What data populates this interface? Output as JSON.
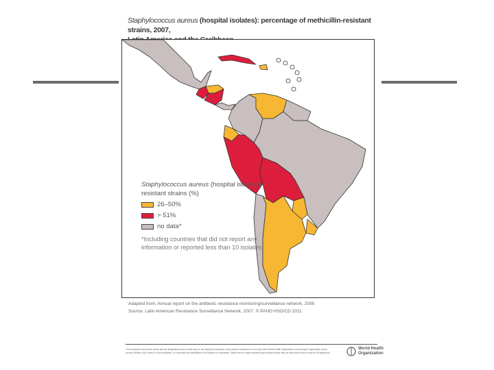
{
  "title": {
    "italic": "Staphylococcus aureus",
    "rest": " (hospital isolates): percentage of methicillin-resistant strains, 2007,",
    "line2": "Latin America and the Caribbean"
  },
  "legend": {
    "title_italic": "Staphylococcus aureus",
    "title_rest": " (hospital isolates)",
    "title_line2": "resistant strains (%)",
    "items": [
      {
        "label": "26–50%",
        "color": "#f7b733"
      },
      {
        "label": "> 51%",
        "color": "#dc1e3c"
      },
      {
        "label": "no data*",
        "color": "#c9bfbf"
      }
    ],
    "note": "*Including countries that did not report any information or reported less than 10 isolates"
  },
  "source": {
    "adapted": "Adapted from: Annual report on the antibiotic resistance monitoring/surveillance network, 2008",
    "source": "Source: Latin American Resistance Surveillance Network, 2007. © PAHO HSD/CD 2011"
  },
  "footer": {
    "disclaimer": "The boundaries and names shown and the designations used on this map do not imply the expression of any opinion whatsoever on the part of the World Health Organization concerning the legal status of any country, territory, city or area or of its authorities, or concerning the delimitation of its frontiers or boundaries. Dotted lines on maps represent approximate border lines for which there may not yet be full agreement.",
    "org": "World Health Organization",
    "org_line1": "World Health",
    "org_line2": "Organization"
  },
  "colors": {
    "yellow": "#f7b733",
    "red": "#dc1e3c",
    "gray": "#c9bfbf"
  }
}
